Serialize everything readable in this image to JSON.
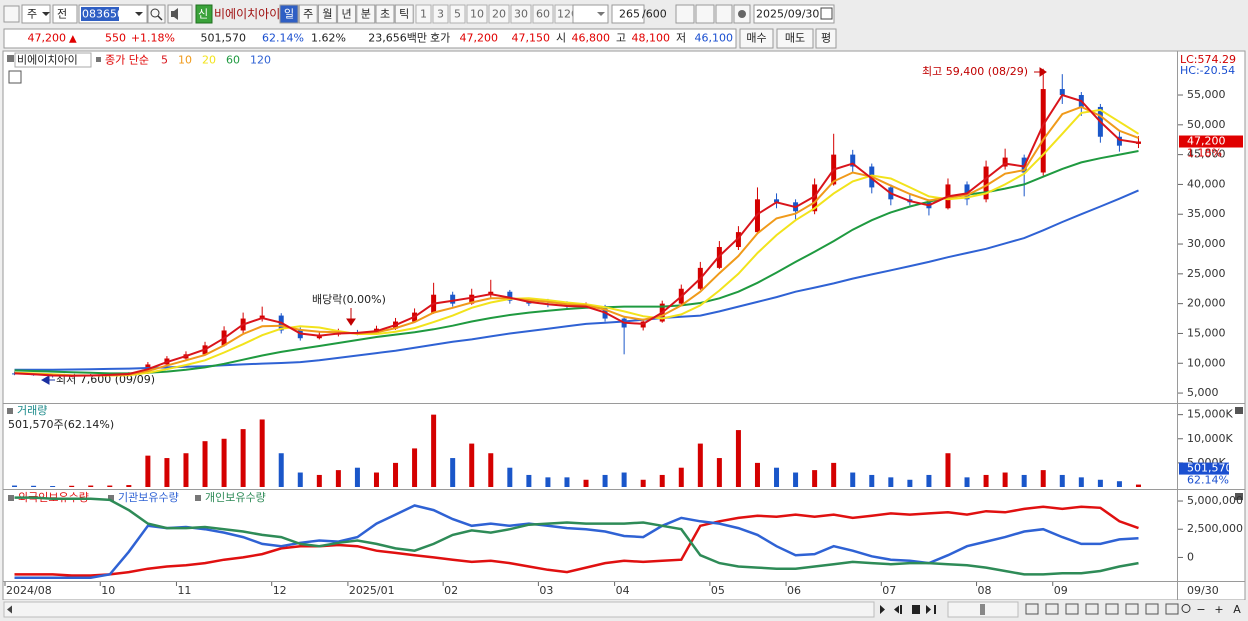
{
  "toolbar": {
    "period": "주",
    "scope": "전",
    "code": "083650",
    "badge": "신",
    "stock": "비에이치아이",
    "tabs": [
      "일",
      "주",
      "월",
      "년",
      "분",
      "초",
      "틱"
    ],
    "intervals": [
      "1",
      "3",
      "5",
      "10",
      "20",
      "30",
      "60",
      "120"
    ],
    "count": "265",
    "max": "/600",
    "date": "2025/09/30"
  },
  "quote": {
    "price": "47,200",
    "arrow": "▲",
    "change": "550",
    "change_pct": "+1.18%",
    "volume": "501,570",
    "volume_ratio": "62.14%",
    "turnover": "1.62%",
    "amount": "23,656백만",
    "hoga_label": "호가",
    "ask": "47,200",
    "bid": "47,150",
    "open_label": "시",
    "open": "46,800",
    "high_label": "고",
    "high": "48,100",
    "low_label": "저",
    "low": "46,100"
  },
  "buttons": [
    "매수",
    "매도",
    "평"
  ],
  "footer": {
    "controls": [
      "−",
      "+",
      "A"
    ]
  },
  "chart_data": [
    {
      "type": "candlestick",
      "name": "비에이치아이",
      "indicator": "종가 단순",
      "categories": [
        "2024/08",
        null,
        null,
        null,
        null,
        "10",
        null,
        null,
        null,
        "11",
        null,
        null,
        null,
        null,
        "12",
        null,
        null,
        null,
        "2025/01",
        null,
        null,
        null,
        null,
        "02",
        null,
        null,
        null,
        null,
        "03",
        null,
        null,
        null,
        "04",
        null,
        null,
        null,
        null,
        "05",
        null,
        null,
        null,
        "06",
        null,
        null,
        null,
        null,
        "07",
        null,
        null,
        null,
        null,
        "08",
        null,
        null,
        null,
        "09",
        null,
        null,
        null,
        null
      ],
      "x_end_label": "09/30",
      "up_color": "#d40000",
      "down_color": "#1a56c9",
      "open": [
        8300,
        8200,
        8000,
        7800,
        7900,
        8000,
        8100,
        8300,
        9800,
        10800,
        11500,
        13000,
        15500,
        17500,
        18000,
        15500,
        14200,
        14800,
        15200,
        15000,
        15800,
        17000,
        18500,
        21500,
        20000,
        21500,
        22000,
        20500,
        20000,
        19800,
        19500,
        19600,
        17500,
        16000,
        17000,
        20000,
        22500,
        26000,
        29500,
        32000,
        37500,
        37000,
        35500,
        40000,
        45000,
        43000,
        39500,
        37500,
        37000,
        36000,
        40000,
        37500,
        43000,
        44500,
        42000,
        56000,
        55000,
        53000,
        48000,
        46800
      ],
      "high": [
        8600,
        8400,
        8200,
        8100,
        8200,
        8300,
        8500,
        10200,
        11200,
        12000,
        13600,
        16200,
        18500,
        19500,
        18400,
        16000,
        15300,
        15800,
        15600,
        16300,
        17600,
        19200,
        23500,
        22000,
        22500,
        24000,
        22300,
        21000,
        20800,
        20400,
        20200,
        19800,
        17800,
        17400,
        20500,
        23200,
        27000,
        30500,
        33000,
        39500,
        38500,
        37500,
        41000,
        48500,
        45800,
        43500,
        40000,
        38500,
        37500,
        41000,
        40500,
        44000,
        46000,
        45000,
        59400,
        58500,
        55500,
        53500,
        49000,
        48100
      ],
      "low": [
        8000,
        7900,
        7600,
        7700,
        7800,
        7900,
        8000,
        8200,
        9600,
        10500,
        11300,
        12800,
        15000,
        17000,
        15000,
        13800,
        14000,
        14500,
        14700,
        14800,
        15600,
        16800,
        18300,
        19500,
        19800,
        21000,
        20000,
        19600,
        19400,
        19100,
        19200,
        17000,
        11500,
        15500,
        16800,
        19800,
        22300,
        25800,
        29000,
        31800,
        36000,
        34000,
        35000,
        39800,
        42000,
        38500,
        36500,
        36500,
        34800,
        35800,
        36500,
        37000,
        42500,
        38000,
        41500,
        53500,
        51500,
        47000,
        45500,
        46100
      ],
      "close": [
        8200,
        8000,
        7800,
        7900,
        8000,
        8100,
        8300,
        9800,
        10800,
        11500,
        13000,
        15500,
        17500,
        18000,
        15500,
        14200,
        14800,
        15200,
        15000,
        15800,
        17000,
        18500,
        21500,
        20000,
        21500,
        22000,
        20500,
        20000,
        19800,
        19500,
        19600,
        17500,
        16000,
        17000,
        20000,
        22500,
        26000,
        29500,
        32000,
        37500,
        37000,
        35500,
        40000,
        45000,
        43000,
        39500,
        37500,
        37000,
        36000,
        40000,
        37500,
        43000,
        44500,
        42000,
        56000,
        55000,
        53000,
        48000,
        46500,
        47200
      ],
      "series": [
        {
          "name": "5",
          "color": "#d9141b",
          "values": [
            8300,
            8150,
            7950,
            7900,
            7950,
            8050,
            8200,
            9000,
            10200,
            11200,
            12300,
            14200,
            16500,
            17600,
            16800,
            15000,
            14600,
            15000,
            15100,
            15400,
            16400,
            17800,
            20000,
            20500,
            21000,
            21600,
            21000,
            20300,
            19900,
            19600,
            19500,
            18500,
            16800,
            16600,
            18500,
            21200,
            24200,
            28000,
            31000,
            35000,
            37000,
            36200,
            38000,
            42500,
            43500,
            41000,
            38500,
            37200,
            36500,
            38000,
            38500,
            41000,
            43500,
            43000,
            50000,
            55000,
            54000,
            50500,
            47500,
            47000
          ]
        },
        {
          "name": "10",
          "color": "#f09a1a",
          "values": [
            8350,
            8200,
            8050,
            7950,
            7950,
            8000,
            8100,
            8700,
            9600,
            10500,
            11400,
            13000,
            14900,
            16200,
            16300,
            15600,
            15300,
            15200,
            15000,
            15200,
            15900,
            16900,
            18500,
            19300,
            20200,
            20900,
            20900,
            20600,
            20300,
            19900,
            19700,
            19000,
            17800,
            17300,
            18000,
            19700,
            22000,
            25100,
            28000,
            31800,
            34300,
            35100,
            37000,
            40500,
            42000,
            41300,
            39800,
            38400,
            37300,
            37800,
            38200,
            39800,
            41800,
            42400,
            47500,
            51800,
            53000,
            51500,
            49000,
            47800
          ]
        },
        {
          "name": "20",
          "color": "#f2e31c",
          "values": [
            8400,
            8300,
            8150,
            8000,
            7950,
            7950,
            8000,
            8400,
            9000,
            9700,
            10500,
            11800,
            13200,
            14700,
            15800,
            16200,
            16000,
            15400,
            14900,
            14900,
            15300,
            15900,
            16900,
            18000,
            19300,
            20200,
            20800,
            20900,
            20600,
            20200,
            19900,
            19400,
            18700,
            17900,
            17500,
            18200,
            19700,
            22200,
            25000,
            28500,
            31500,
            34000,
            36000,
            38500,
            40500,
            41500,
            41000,
            39500,
            38000,
            37500,
            37800,
            38500,
            40000,
            41800,
            45000,
            48500,
            52000,
            52500,
            50500,
            48500
          ]
        },
        {
          "name": "60",
          "color": "#1f9a40",
          "values": [
            8800,
            8700,
            8600,
            8500,
            8400,
            8300,
            8300,
            8400,
            8600,
            8900,
            9300,
            9900,
            10600,
            11300,
            11900,
            12400,
            12900,
            13400,
            13900,
            14400,
            14800,
            15200,
            15700,
            16300,
            17000,
            17600,
            18100,
            18500,
            18800,
            19100,
            19300,
            19400,
            19500,
            19500,
            19500,
            19700,
            20100,
            20900,
            22000,
            23500,
            25200,
            27000,
            28700,
            30500,
            32400,
            34000,
            35300,
            36300,
            37100,
            37800,
            38300,
            38700,
            39300,
            40000,
            41300,
            42600,
            43700,
            44400,
            45000,
            45600
          ]
        },
        {
          "name": "120",
          "color": "#2f62d4",
          "values": [
            8900,
            8900,
            8900,
            8950,
            9000,
            9050,
            9100,
            9200,
            9300,
            9400,
            9500,
            9650,
            9800,
            9950,
            10050,
            10200,
            10500,
            10900,
            11300,
            11700,
            12100,
            12600,
            13100,
            13600,
            14000,
            14500,
            15000,
            15400,
            15800,
            16200,
            16600,
            16800,
            17000,
            17300,
            17600,
            17800,
            18000,
            18700,
            19500,
            20300,
            21100,
            22000,
            22700,
            23400,
            24200,
            24900,
            25600,
            26300,
            27000,
            27800,
            28500,
            29200,
            30100,
            31000,
            32300,
            33700,
            35000,
            36300,
            37600,
            39000
          ]
        }
      ],
      "ylim": [
        3500,
        59700
      ],
      "yticks": [
        {
          "value": 5000,
          "label": "5,000"
        },
        {
          "value": 10000,
          "label": "10,000"
        },
        {
          "value": 15000,
          "label": "15,000"
        },
        {
          "value": 20000,
          "label": "20,000"
        },
        {
          "value": 25000,
          "label": "25,000"
        },
        {
          "value": 30000,
          "label": "30,000"
        },
        {
          "value": 35000,
          "label": "35,000"
        },
        {
          "value": 40000,
          "label": "40,000"
        },
        {
          "value": 45000,
          "label": "45,000"
        },
        {
          "value": 50000,
          "label": "50,000"
        },
        {
          "value": 55000,
          "label": "55,000"
        }
      ],
      "annotations": [
        "최고 59,400 (08/29)",
        "최저 7,600 (09/09)",
        "배당락(0.00%)"
      ],
      "lc": "LC:574.29",
      "hc": "HC:-20.54",
      "last_price": {
        "value": 47200,
        "label": "47,200"
      },
      "change_label": "1.18%"
    },
    {
      "type": "bar",
      "title": "거래량",
      "subtitle": "501,570주(62.14%)",
      "values": [
        300000,
        250000,
        200000,
        250000,
        300000,
        300000,
        400000,
        6500000,
        6000000,
        7000000,
        9500000,
        10000000,
        12000000,
        14000000,
        7000000,
        3000000,
        2500000,
        3500000,
        4000000,
        3000000,
        5000000,
        8000000,
        15000000,
        6000000,
        9000000,
        7000000,
        4000000,
        2500000,
        2000000,
        2000000,
        1500000,
        2500000,
        3000000,
        1500000,
        2500000,
        4000000,
        9000000,
        6000000,
        11800000,
        5000000,
        4000000,
        3000000,
        3500000,
        5000000,
        3000000,
        2500000,
        2000000,
        1500000,
        2500000,
        7000000,
        2000000,
        2500000,
        3000000,
        2500000,
        3500000,
        2500000,
        2000000,
        1500000,
        1200000,
        501570
      ],
      "ylim": [
        0,
        17000000
      ],
      "yticks": [
        {
          "value": 5000000,
          "label": "5,000K"
        },
        {
          "value": 10000000,
          "label": "10,000K"
        },
        {
          "value": 15000000,
          "label": "15,000K"
        }
      ],
      "last_value": {
        "value": 501570,
        "label": "501,570"
      },
      "ratio_label": "62.14%"
    },
    {
      "type": "line",
      "series": [
        {
          "name": "외국인보유수량",
          "color": "#e01010",
          "values": [
            -1500000,
            -1500000,
            -1500000,
            -1600000,
            -1600000,
            -1500000,
            -1300000,
            -1000000,
            -800000,
            -700000,
            -500000,
            -200000,
            0,
            300000,
            800000,
            1000000,
            1000000,
            1100000,
            1000000,
            600000,
            400000,
            200000,
            0,
            -200000,
            -400000,
            -300000,
            -500000,
            -800000,
            -1100000,
            -1300000,
            -900000,
            -500000,
            -300000,
            -400000,
            -300000,
            -200000,
            2800000,
            3200000,
            3500000,
            3700000,
            3600000,
            3800000,
            3600000,
            3800000,
            3500000,
            3700000,
            3900000,
            3800000,
            3900000,
            4000000,
            3800000,
            4100000,
            4000000,
            4300000,
            4500000,
            4300000,
            4500000,
            4400000,
            3200000,
            2600000
          ]
        },
        {
          "name": "기관보유수량",
          "color": "#2f62d4",
          "values": [
            -1800000,
            -1800000,
            -1800000,
            -1800000,
            -1800000,
            -1500000,
            500000,
            2800000,
            2600000,
            2700000,
            2500000,
            2200000,
            1800000,
            1200000,
            1000000,
            1300000,
            1500000,
            1400000,
            1800000,
            3000000,
            3800000,
            4600000,
            4200000,
            3400000,
            2800000,
            3000000,
            2800000,
            3000000,
            2800000,
            2600000,
            2500000,
            2300000,
            1900000,
            1800000,
            2800000,
            3500000,
            3200000,
            3000000,
            2600000,
            2000000,
            1000000,
            200000,
            300000,
            1000000,
            600000,
            100000,
            -200000,
            -300000,
            -500000,
            200000,
            1000000,
            1400000,
            1800000,
            2300000,
            2500000,
            1800000,
            1200000,
            1200000,
            1600000,
            1700000
          ]
        },
        {
          "name": "개인보유수량",
          "color": "#2e8b57",
          "values": [
            5300000,
            5300000,
            5200000,
            5200000,
            5200000,
            5100000,
            4200000,
            3000000,
            2600000,
            2600000,
            2700000,
            2500000,
            2300000,
            2000000,
            1800000,
            1200000,
            1000000,
            1300000,
            1500000,
            1200000,
            800000,
            600000,
            1200000,
            2000000,
            2400000,
            2200000,
            2500000,
            2900000,
            3000000,
            3100000,
            3000000,
            3000000,
            3000000,
            3100000,
            2800000,
            2500000,
            200000,
            -500000,
            -800000,
            -900000,
            -1000000,
            -1000000,
            -800000,
            -600000,
            -400000,
            -500000,
            -600000,
            -500000,
            -500000,
            -600000,
            -700000,
            -900000,
            -1200000,
            -1500000,
            -1500000,
            -1400000,
            -1400000,
            -1200000,
            -800000,
            -500000
          ]
        }
      ],
      "ylim": [
        -2000000,
        5800000
      ],
      "yticks": [
        0,
        {
          "value": 2500000,
          "label": "2,500,000"
        },
        {
          "value": 5000000,
          "label": "5,000,000"
        }
      ]
    }
  ]
}
